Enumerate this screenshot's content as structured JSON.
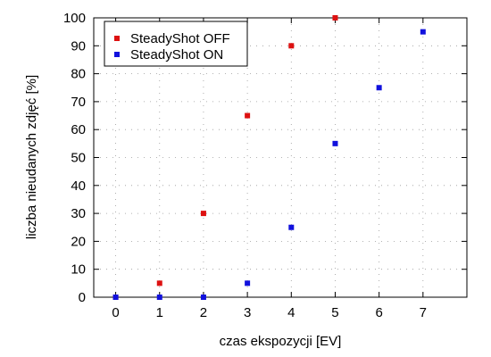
{
  "chart_data": {
    "type": "scatter",
    "xlabel": "czas ekspozycji [EV]",
    "ylabel": "liczba nieudanych zdjęć [%]",
    "xlim": [
      -0.5,
      8
    ],
    "ylim": [
      0,
      100
    ],
    "xticks": [
      0,
      1,
      2,
      3,
      4,
      5,
      6,
      7
    ],
    "yticks": [
      0,
      10,
      20,
      30,
      40,
      50,
      60,
      70,
      80,
      90,
      100
    ],
    "grid": true,
    "legend_position": "top-left",
    "series": [
      {
        "name": "SteadyShot OFF",
        "color": "#dd1111",
        "points": [
          [
            0,
            0
          ],
          [
            1,
            5
          ],
          [
            2,
            30
          ],
          [
            3,
            65
          ],
          [
            4,
            90
          ],
          [
            5,
            100
          ]
        ]
      },
      {
        "name": "SteadyShot ON",
        "color": "#1111dd",
        "points": [
          [
            0,
            0
          ],
          [
            1,
            0
          ],
          [
            2,
            0
          ],
          [
            3,
            5
          ],
          [
            4,
            25
          ],
          [
            5,
            55
          ],
          [
            6,
            75
          ],
          [
            7,
            95
          ]
        ]
      }
    ]
  }
}
